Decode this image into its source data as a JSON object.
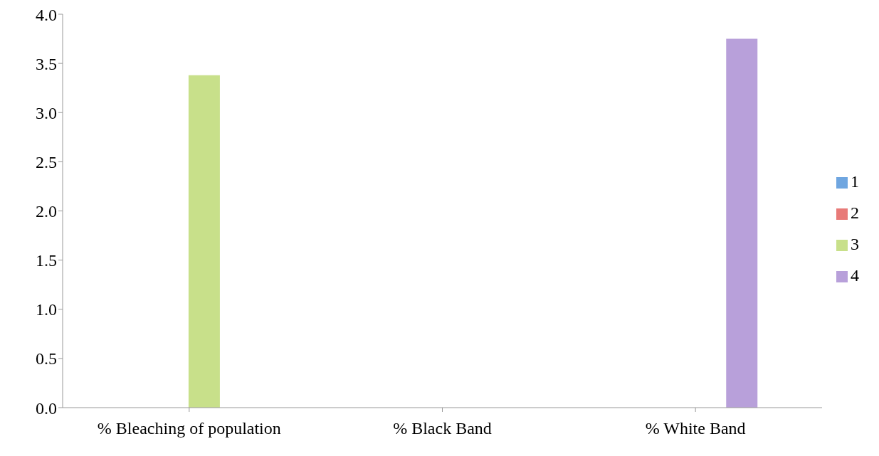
{
  "chart_data": {
    "type": "bar",
    "categories": [
      "% Bleaching of population",
      "% Black Band",
      "% White Band"
    ],
    "series": [
      {
        "name": "1",
        "color": "#6fa6e0",
        "values": [
          0,
          0,
          0
        ]
      },
      {
        "name": "2",
        "color": "#e87a78",
        "values": [
          0,
          0,
          0
        ]
      },
      {
        "name": "3",
        "color": "#c8e08a",
        "values": [
          3.38,
          0,
          0
        ]
      },
      {
        "name": "4",
        "color": "#b8a0da",
        "values": [
          0,
          0,
          3.75
        ]
      }
    ],
    "ylim": [
      0,
      4
    ],
    "yticks": [
      {
        "value": 0,
        "label": "0.0"
      },
      {
        "value": 0.5,
        "label": "0.5"
      },
      {
        "value": 1,
        "label": "1.0"
      },
      {
        "value": 1.5,
        "label": "1.5"
      },
      {
        "value": 2,
        "label": "2.0"
      },
      {
        "value": 2.5,
        "label": "2.5"
      },
      {
        "value": 3,
        "label": "3.0"
      },
      {
        "value": 3.5,
        "label": "3.5"
      },
      {
        "value": 4,
        "label": "4.0"
      }
    ],
    "grid": false,
    "legend": "right"
  }
}
